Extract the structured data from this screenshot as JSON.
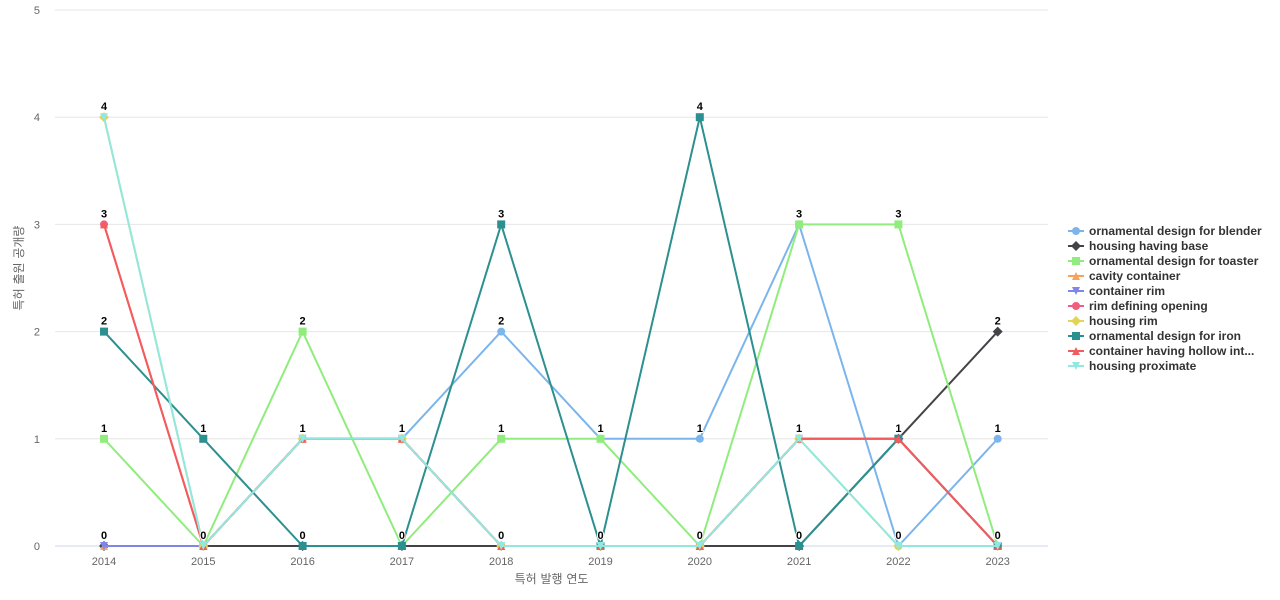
{
  "chart_data": {
    "type": "line",
    "title": "",
    "xlabel": "특허 발행 연도",
    "ylabel": "특허 출원 공개량",
    "x": [
      "2014",
      "2015",
      "2016",
      "2017",
      "2018",
      "2019",
      "2020",
      "2021",
      "2022",
      "2023"
    ],
    "ylim": [
      0,
      5
    ],
    "yticks": [
      0,
      1,
      2,
      3,
      4,
      5
    ],
    "grid": true,
    "legend_position": "right",
    "series": [
      {
        "name": "ornamental design for blender",
        "color": "#7cb5ec",
        "marker": "circle",
        "values": [
          0,
          0,
          1,
          1,
          2,
          1,
          1,
          3,
          0,
          1
        ]
      },
      {
        "name": "housing having base",
        "color": "#434348",
        "marker": "diamond",
        "values": [
          0,
          0,
          0,
          0,
          0,
          0,
          0,
          0,
          1,
          2
        ]
      },
      {
        "name": "ornamental design for toaster",
        "color": "#90ed7d",
        "marker": "square",
        "values": [
          1,
          0,
          2,
          0,
          1,
          1,
          0,
          3,
          3,
          0
        ]
      },
      {
        "name": "cavity container",
        "color": "#f7a35c",
        "marker": "triangle",
        "values": [
          0,
          0,
          1,
          1,
          0,
          0,
          0,
          1,
          1,
          0
        ]
      },
      {
        "name": "container rim",
        "color": "#8085e9",
        "marker": "triangle-down",
        "values": [
          0,
          0,
          1,
          1,
          0,
          0,
          0,
          1,
          1,
          0
        ]
      },
      {
        "name": "rim defining opening",
        "color": "#f15c80",
        "marker": "circle",
        "values": [
          3,
          0,
          1,
          1,
          0,
          0,
          0,
          1,
          1,
          0
        ]
      },
      {
        "name": "housing rim",
        "color": "#e4d354",
        "marker": "diamond",
        "values": [
          4,
          0,
          1,
          1,
          0,
          0,
          0,
          1,
          0,
          0
        ]
      },
      {
        "name": "ornamental design for iron",
        "color": "#2b908f",
        "marker": "square",
        "values": [
          2,
          1,
          0,
          0,
          3,
          0,
          4,
          0,
          1,
          0
        ]
      },
      {
        "name": "container having hollow int...",
        "color": "#f45b5b",
        "marker": "triangle",
        "values": [
          3,
          0,
          1,
          1,
          0,
          0,
          0,
          1,
          1,
          0
        ]
      },
      {
        "name": "housing proximate",
        "color": "#91e8e1",
        "marker": "triangle-down",
        "values": [
          4,
          0,
          1,
          1,
          0,
          0,
          0,
          1,
          0,
          0
        ]
      }
    ],
    "data_labels": [
      {
        "x": "2014",
        "y": 4,
        "text": "4"
      },
      {
        "x": "2014",
        "y": 3,
        "text": "3"
      },
      {
        "x": "2014",
        "y": 2,
        "text": "2"
      },
      {
        "x": "2014",
        "y": 1,
        "text": "1"
      },
      {
        "x": "2014",
        "y": 0,
        "text": "0"
      },
      {
        "x": "2015",
        "y": 1,
        "text": "1"
      },
      {
        "x": "2015",
        "y": 0,
        "text": "0"
      },
      {
        "x": "2016",
        "y": 2,
        "text": "2"
      },
      {
        "x": "2016",
        "y": 1,
        "text": "1"
      },
      {
        "x": "2016",
        "y": 0,
        "text": "0"
      },
      {
        "x": "2017",
        "y": 1,
        "text": "1"
      },
      {
        "x": "2017",
        "y": 0,
        "text": "0"
      },
      {
        "x": "2018",
        "y": 3,
        "text": "3"
      },
      {
        "x": "2018",
        "y": 2,
        "text": "2"
      },
      {
        "x": "2018",
        "y": 1,
        "text": "1"
      },
      {
        "x": "2018",
        "y": 0,
        "text": "0"
      },
      {
        "x": "2019",
        "y": 1,
        "text": "1"
      },
      {
        "x": "2019",
        "y": 0,
        "text": "0"
      },
      {
        "x": "2020",
        "y": 4,
        "text": "4"
      },
      {
        "x": "2020",
        "y": 1,
        "text": "1"
      },
      {
        "x": "2020",
        "y": 0,
        "text": "0"
      },
      {
        "x": "2021",
        "y": 3,
        "text": "3"
      },
      {
        "x": "2021",
        "y": 1,
        "text": "1"
      },
      {
        "x": "2021",
        "y": 0,
        "text": "0"
      },
      {
        "x": "2022",
        "y": 3,
        "text": "3"
      },
      {
        "x": "2022",
        "y": 1,
        "text": "1"
      },
      {
        "x": "2022",
        "y": 0,
        "text": "0"
      },
      {
        "x": "2023",
        "y": 2,
        "text": "2"
      },
      {
        "x": "2023",
        "y": 1,
        "text": "1"
      },
      {
        "x": "2023",
        "y": 0,
        "text": "0"
      }
    ]
  }
}
